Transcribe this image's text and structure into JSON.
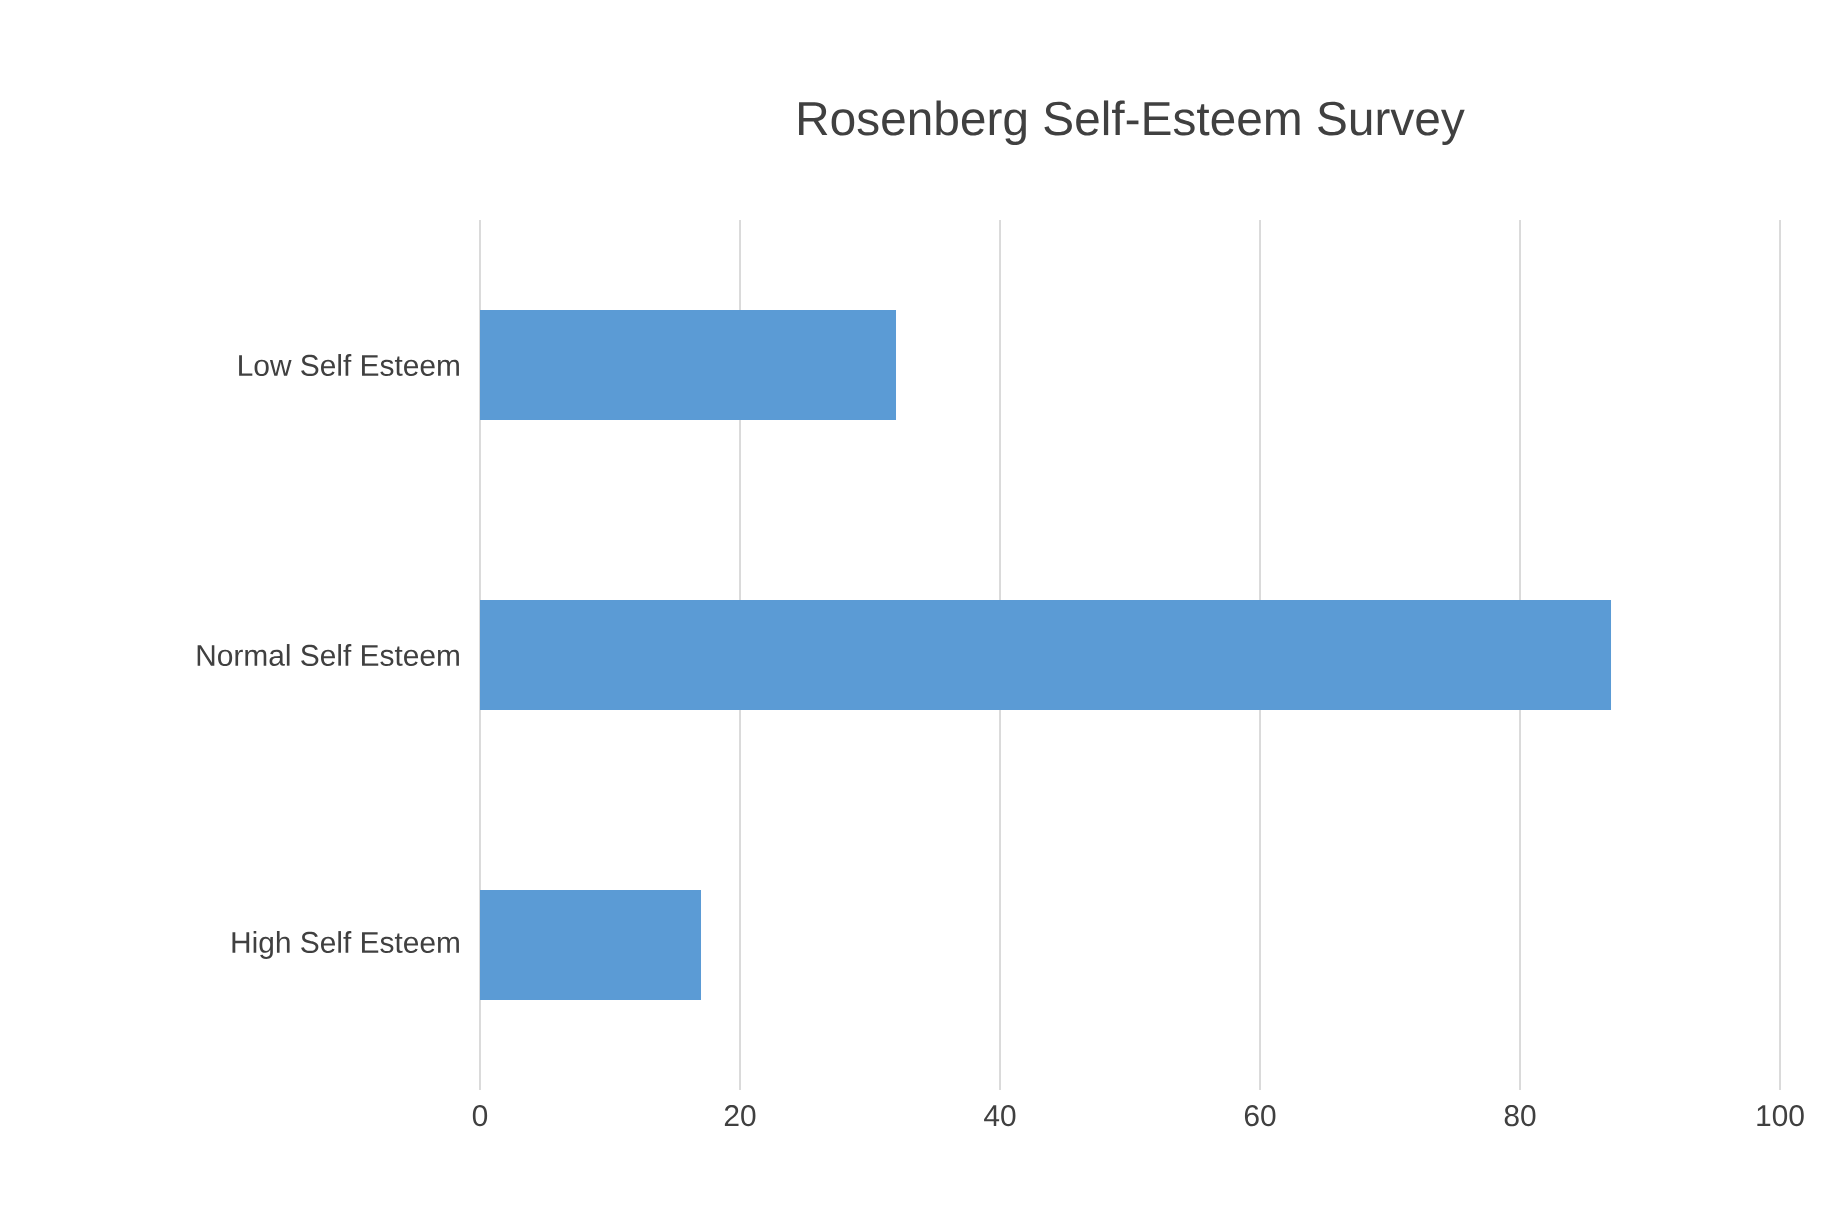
{
  "chart_data": {
    "type": "bar",
    "orientation": "horizontal",
    "title": "Rosenberg Self-Esteem Survey",
    "categories": [
      "Low Self Esteem",
      "Normal Self Esteem",
      "High Self Esteem"
    ],
    "values": [
      32,
      87,
      17
    ],
    "color": "#5b9bd5",
    "xlim": [
      0,
      100
    ],
    "xticks": [
      0,
      20,
      40,
      60,
      80,
      100
    ],
    "grid": "x"
  }
}
